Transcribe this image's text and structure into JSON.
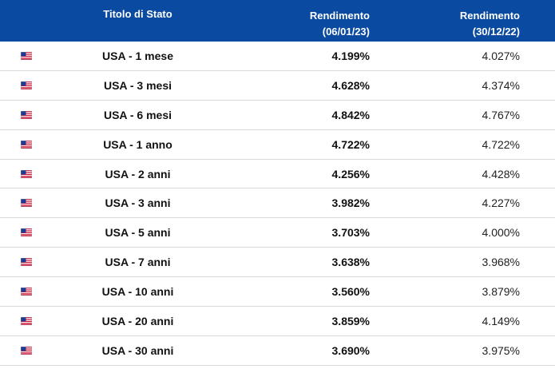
{
  "header": {
    "title": "Titolo di Stato",
    "col1_line1": "Rendimento",
    "col1_line2": "(06/01/23)",
    "col2_line1": "Rendimento",
    "col2_line2": "(30/12/22)"
  },
  "colors": {
    "header_bg": "#0a4aa0",
    "row_border": "#d9d9d9"
  },
  "rows": [
    {
      "flag_icon": "us-flag-icon",
      "name": "USA - 1 mese",
      "yield_current": "4.199%",
      "yield_previous": "4.027%"
    },
    {
      "flag_icon": "us-flag-icon",
      "name": "USA - 3 mesi",
      "yield_current": "4.628%",
      "yield_previous": "4.374%"
    },
    {
      "flag_icon": "us-flag-icon",
      "name": "USA - 6 mesi",
      "yield_current": "4.842%",
      "yield_previous": "4.767%"
    },
    {
      "flag_icon": "us-flag-icon",
      "name": "USA - 1 anno",
      "yield_current": "4.722%",
      "yield_previous": "4.722%"
    },
    {
      "flag_icon": "us-flag-icon",
      "name": "USA - 2 anni",
      "yield_current": "4.256%",
      "yield_previous": "4.428%"
    },
    {
      "flag_icon": "us-flag-icon",
      "name": "USA - 3 anni",
      "yield_current": "3.982%",
      "yield_previous": "4.227%"
    },
    {
      "flag_icon": "us-flag-icon",
      "name": "USA - 5 anni",
      "yield_current": "3.703%",
      "yield_previous": "4.000%"
    },
    {
      "flag_icon": "us-flag-icon",
      "name": "USA - 7 anni",
      "yield_current": "3.638%",
      "yield_previous": "3.968%"
    },
    {
      "flag_icon": "us-flag-icon",
      "name": "USA - 10 anni",
      "yield_current": "3.560%",
      "yield_previous": "3.879%"
    },
    {
      "flag_icon": "us-flag-icon",
      "name": "USA - 20 anni",
      "yield_current": "3.859%",
      "yield_previous": "4.149%"
    },
    {
      "flag_icon": "us-flag-icon",
      "name": "USA - 30 anni",
      "yield_current": "3.690%",
      "yield_previous": "3.975%"
    }
  ]
}
